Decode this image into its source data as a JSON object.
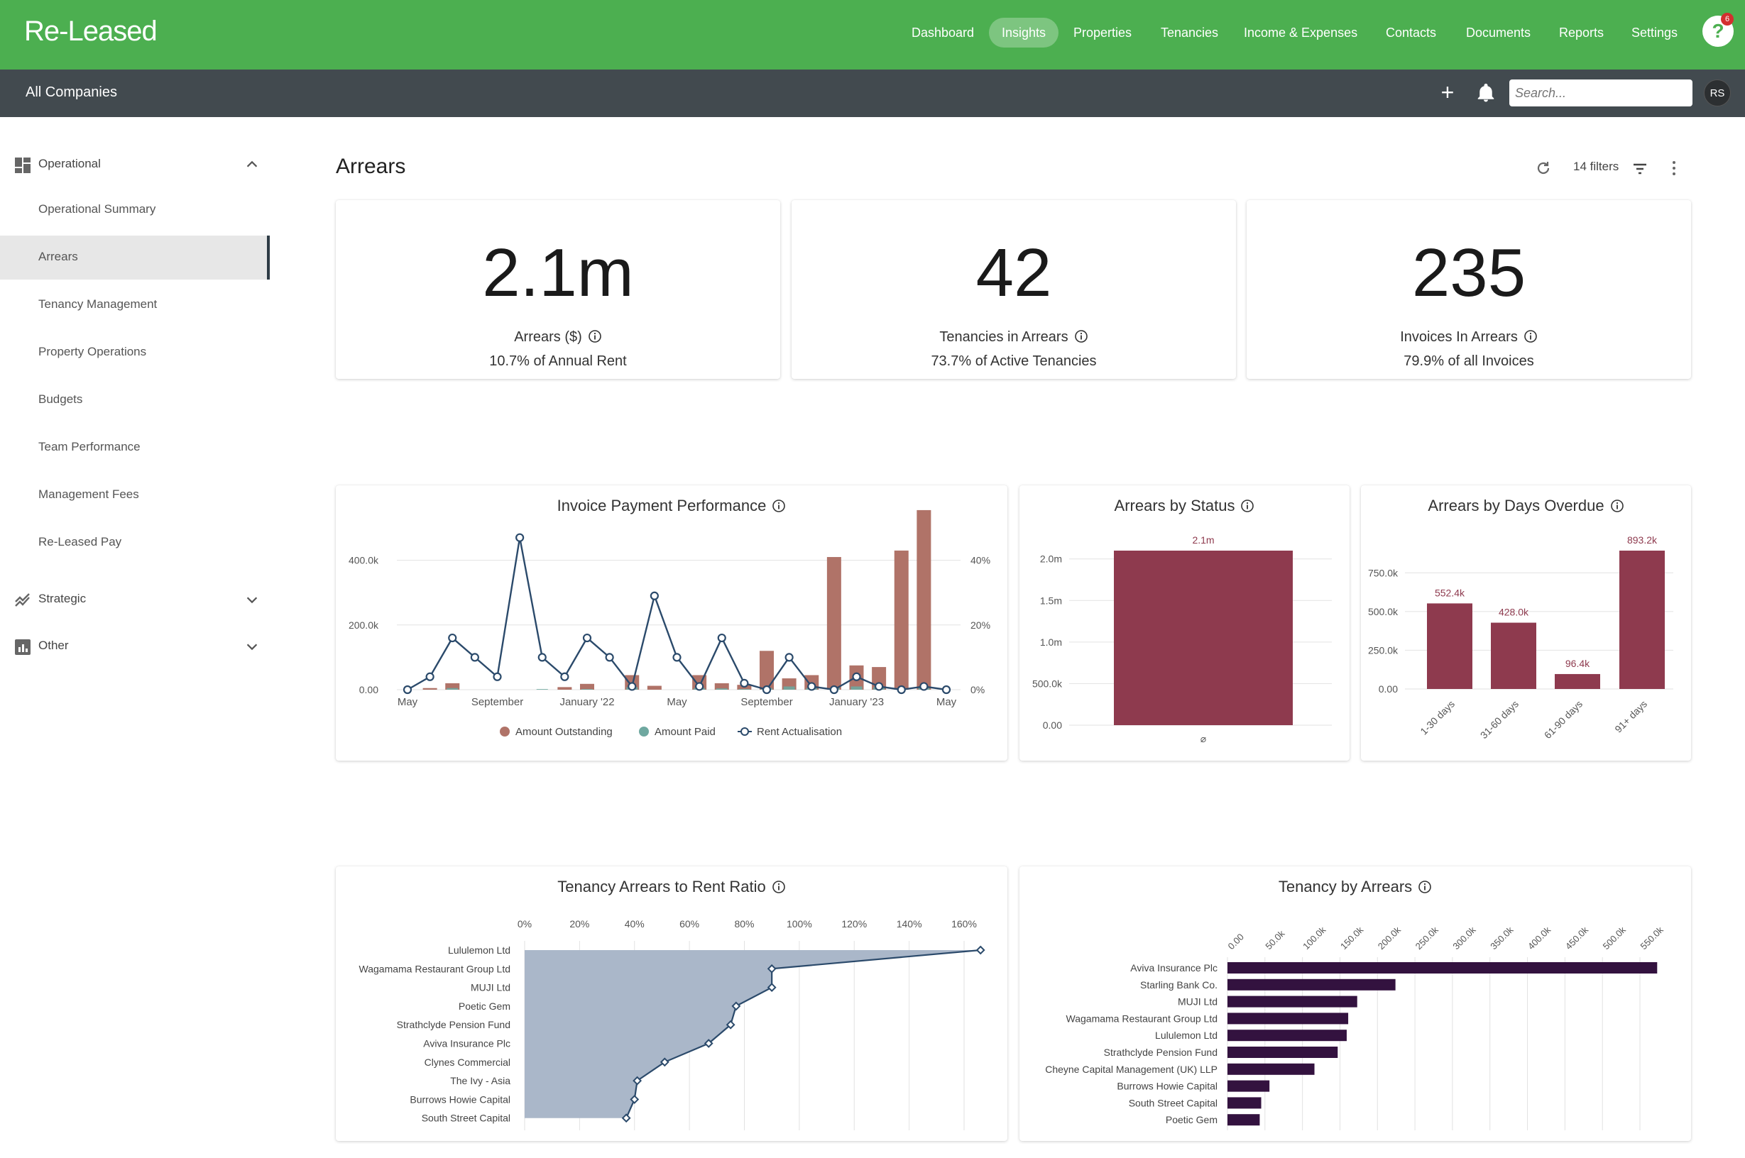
{
  "app": {
    "logo": "Re-Leased",
    "nav": [
      "Dashboard",
      "Insights",
      "Properties",
      "Tenancies",
      "Income & Expenses",
      "Contacts",
      "Documents",
      "Reports",
      "Settings"
    ],
    "nav_active": "Insights",
    "help_badge": "6",
    "help_label": "?"
  },
  "subbar": {
    "company": "All Companies",
    "search_placeholder": "Search...",
    "avatar": "RS"
  },
  "sidebar": {
    "operational": "Operational",
    "items": [
      "Operational Summary",
      "Arrears",
      "Tenancy Management",
      "Property Operations",
      "Budgets",
      "Team Performance",
      "Management Fees",
      "Re-Leased Pay"
    ],
    "active": "Arrears",
    "strategic": "Strategic",
    "other": "Other"
  },
  "page": {
    "title": "Arrears",
    "filters": "14 filters"
  },
  "kpis": [
    {
      "value": "2.1m",
      "label": "Arrears ($)",
      "sub": "10.7% of Annual Rent"
    },
    {
      "value": "42",
      "label": "Tenancies in Arrears",
      "sub": "73.7% of Active Tenancies"
    },
    {
      "value": "235",
      "label": "Invoices In Arrears",
      "sub": "79.9% of all Invoices"
    }
  ],
  "chart_titles": {
    "invoice": "Invoice Payment Performance",
    "status": "Arrears by Status",
    "days": "Arrears by Days Overdue",
    "ratio": "Tenancy Arrears to Rent Ratio",
    "tenancy": "Tenancy by Arrears"
  },
  "colors": {
    "green": "#4caf50",
    "outstanding": "#b07368",
    "paid": "#6fa8a0",
    "line": "#2b4a6b",
    "maroon": "#8e3a4e",
    "purple": "#33123f",
    "area": "#aab7c9"
  },
  "chart_data": [
    {
      "type": "bar",
      "title": "Invoice Payment Performance",
      "x_tick_labels": [
        "May",
        "September",
        "January '22",
        "May",
        "September",
        "January '23",
        "May"
      ],
      "y_ticks_left": [
        "0.00",
        "200.0k",
        "400.0k"
      ],
      "y_ticks_right": [
        "0%",
        "20%",
        "40%"
      ],
      "ylim_left": [
        0,
        500000
      ],
      "ylim_right": [
        0,
        50
      ],
      "legend": [
        "Amount Outstanding",
        "Amount Paid",
        "Rent Actualisation"
      ],
      "legend_position": "bottom",
      "amount_outstanding": [
        0,
        5000,
        20000,
        0,
        0,
        0,
        0,
        8000,
        18000,
        0,
        45000,
        12000,
        0,
        45000,
        20000,
        15000,
        120000,
        35000,
        45000,
        410000,
        75000,
        70000,
        430000,
        555000,
        0
      ],
      "amount_paid": [
        0,
        0,
        5000,
        0,
        0,
        0,
        2000,
        0,
        2000,
        0,
        8000,
        0,
        0,
        5000,
        4000,
        2000,
        5000,
        10000,
        5000,
        5000,
        10000,
        8000,
        5000,
        8000,
        0
      ],
      "rent_actualisation": [
        0,
        4,
        16,
        10,
        4,
        47,
        10,
        4,
        16,
        10,
        1,
        29,
        10,
        1,
        16,
        2,
        0,
        10,
        1,
        0,
        4,
        1,
        0,
        1,
        0
      ]
    },
    {
      "type": "bar",
      "title": "Arrears by Status",
      "categories": [
        "⌀"
      ],
      "values": [
        2100000
      ],
      "data_labels": [
        "2.1m"
      ],
      "y_ticks": [
        "0.00",
        "500.0k",
        "1.0m",
        "1.5m",
        "2.0m"
      ],
      "ylim": [
        0,
        2100000
      ]
    },
    {
      "type": "bar",
      "title": "Arrears by Days Overdue",
      "categories": [
        "1-30 days",
        "31-60 days",
        "61-90 days",
        "91+ days"
      ],
      "values": [
        552400,
        428000,
        96400,
        893200
      ],
      "data_labels": [
        "552.4k",
        "428.0k",
        "96.4k",
        "893.2k"
      ],
      "y_ticks": [
        "0.00",
        "250.0k",
        "500.0k",
        "750.0k"
      ],
      "ylim": [
        0,
        893200
      ]
    },
    {
      "type": "area",
      "title": "Tenancy Arrears to Rent Ratio",
      "categories": [
        "Lululemon Ltd",
        "Wagamama Restaurant Group Ltd",
        "MUJI Ltd",
        "Poetic Gem",
        "Strathclyde Pension Fund",
        "Aviva Insurance Plc",
        "Clynes Commercial",
        "The Ivy - Asia",
        "Burrows Howie Capital",
        "South Street Capital"
      ],
      "values": [
        166,
        90,
        90,
        77,
        75,
        67,
        51,
        41,
        40,
        37
      ],
      "x_ticks": [
        "0%",
        "20%",
        "40%",
        "60%",
        "80%",
        "100%",
        "120%",
        "140%",
        "160%"
      ],
      "xlim": [
        0,
        160
      ],
      "axis_position": "top"
    },
    {
      "type": "bar",
      "orientation": "horizontal",
      "title": "Tenancy by Arrears",
      "categories": [
        "Aviva Insurance Plc",
        "Starling Bank Co.",
        "MUJI Ltd",
        "Wagamama Restaurant Group Ltd",
        "Lululemon Ltd",
        "Strathclyde Pension Fund",
        "Cheyne Capital Management (UK) LLP",
        "Burrows Howie Capital",
        "South Street Capital",
        "Poetic Gem"
      ],
      "values": [
        573000,
        224000,
        173000,
        161000,
        159000,
        147000,
        116000,
        56000,
        45000,
        43000
      ],
      "x_ticks": [
        "0.00",
        "50.0k",
        "100.0k",
        "150.0k",
        "200.0k",
        "250.0k",
        "300.0k",
        "350.0k",
        "400.0k",
        "450.0k",
        "500.0k",
        "550.0k"
      ],
      "xlim": [
        0,
        550000
      ]
    }
  ]
}
